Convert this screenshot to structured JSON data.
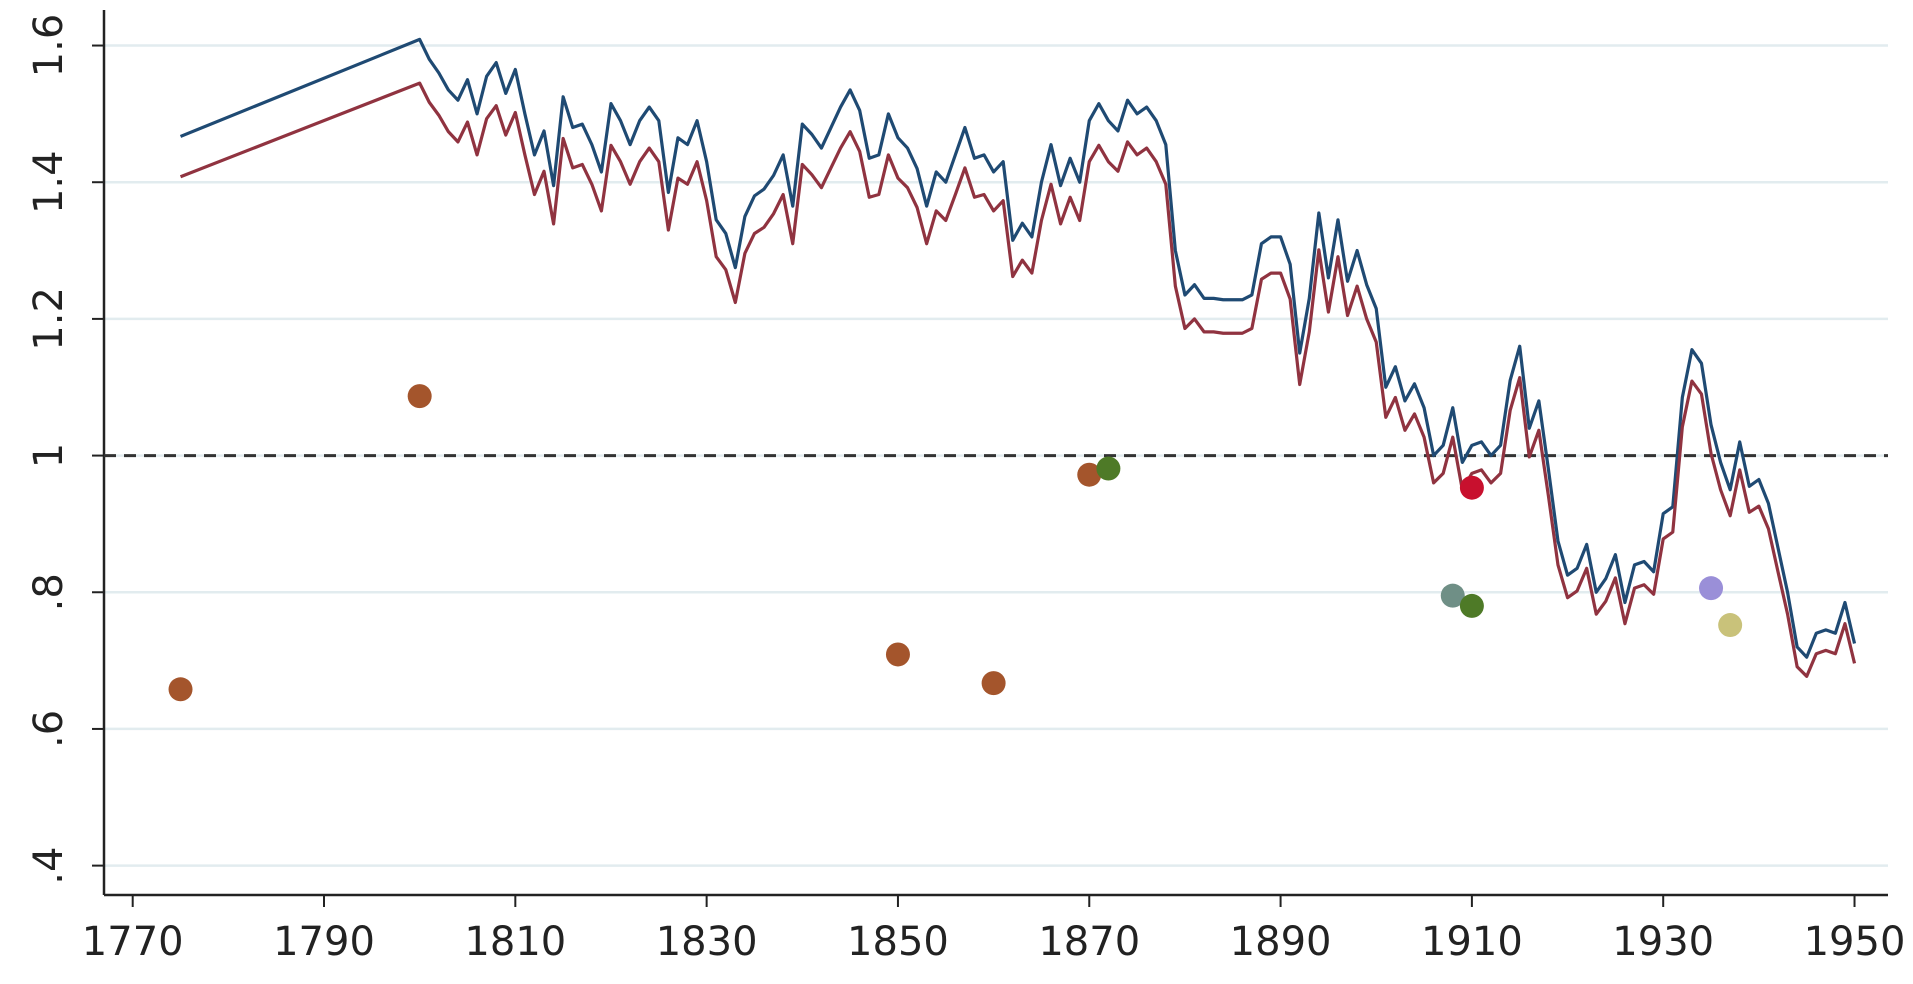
{
  "chart_data": {
    "type": "line",
    "x": [
      1775,
      1800,
      1801,
      1802,
      1803,
      1804,
      1805,
      1806,
      1807,
      1808,
      1809,
      1810,
      1811,
      1812,
      1813,
      1814,
      1815,
      1816,
      1817,
      1818,
      1819,
      1820,
      1821,
      1822,
      1823,
      1824,
      1825,
      1826,
      1827,
      1828,
      1829,
      1830,
      1831,
      1832,
      1833,
      1834,
      1835,
      1836,
      1837,
      1838,
      1839,
      1840,
      1841,
      1842,
      1843,
      1844,
      1845,
      1846,
      1847,
      1848,
      1849,
      1850,
      1851,
      1852,
      1853,
      1854,
      1855,
      1856,
      1857,
      1858,
      1859,
      1860,
      1861,
      1862,
      1863,
      1864,
      1865,
      1866,
      1867,
      1868,
      1869,
      1870,
      1871,
      1872,
      1873,
      1874,
      1875,
      1876,
      1877,
      1878,
      1879,
      1880,
      1881,
      1882,
      1883,
      1884,
      1885,
      1886,
      1887,
      1888,
      1889,
      1890,
      1891,
      1892,
      1893,
      1894,
      1895,
      1896,
      1897,
      1898,
      1899,
      1900,
      1901,
      1902,
      1903,
      1904,
      1905,
      1906,
      1907,
      1908,
      1909,
      1910,
      1911,
      1912,
      1913,
      1914,
      1915,
      1916,
      1917,
      1918,
      1919,
      1920,
      1921,
      1922,
      1923,
      1924,
      1925,
      1926,
      1927,
      1928,
      1929,
      1930,
      1931,
      1932,
      1933,
      1934,
      1935,
      1936,
      1937,
      1938,
      1939,
      1940,
      1941,
      1942,
      1943,
      1944,
      1945,
      1946,
      1947,
      1948,
      1949,
      1950
    ],
    "series": [
      {
        "color": "#1f4a73",
        "values": [
          1.467,
          1.609,
          1.58,
          1.56,
          1.535,
          1.52,
          1.55,
          1.5,
          1.555,
          1.575,
          1.53,
          1.565,
          1.5,
          1.44,
          1.475,
          1.395,
          1.525,
          1.48,
          1.485,
          1.455,
          1.415,
          1.515,
          1.49,
          1.455,
          1.49,
          1.51,
          1.49,
          1.385,
          1.465,
          1.455,
          1.49,
          1.43,
          1.345,
          1.325,
          1.275,
          1.35,
          1.38,
          1.39,
          1.41,
          1.44,
          1.365,
          1.485,
          1.47,
          1.45,
          1.48,
          1.51,
          1.535,
          1.505,
          1.435,
          1.44,
          1.5,
          1.465,
          1.45,
          1.42,
          1.365,
          1.415,
          1.4,
          1.44,
          1.48,
          1.435,
          1.44,
          1.415,
          1.43,
          1.315,
          1.34,
          1.32,
          1.4,
          1.455,
          1.395,
          1.435,
          1.4,
          1.49,
          1.515,
          1.49,
          1.475,
          1.52,
          1.5,
          1.51,
          1.49,
          1.455,
          1.3,
          1.235,
          1.25,
          1.23,
          1.23,
          1.228,
          1.228,
          1.228,
          1.235,
          1.31,
          1.32,
          1.32,
          1.28,
          1.15,
          1.23,
          1.355,
          1.26,
          1.345,
          1.255,
          1.3,
          1.25,
          1.215,
          1.1,
          1.13,
          1.08,
          1.105,
          1.07,
          1.0,
          1.015,
          1.07,
          0.99,
          1.015,
          1.02,
          1.0,
          1.015,
          1.11,
          1.16,
          1.04,
          1.08,
          0.98,
          0.875,
          0.825,
          0.835,
          0.87,
          0.8,
          0.82,
          0.855,
          0.785,
          0.84,
          0.845,
          0.83,
          0.915,
          0.925,
          1.085,
          1.155,
          1.135,
          1.045,
          0.99,
          0.95,
          1.02,
          0.955,
          0.965,
          0.93,
          0.865,
          0.8,
          0.72,
          0.705,
          0.74,
          0.745,
          0.74,
          0.785,
          0.725
        ]
      },
      {
        "color": "#903340",
        "values": [
          1.408,
          1.545,
          1.517,
          1.498,
          1.474,
          1.459,
          1.488,
          1.44,
          1.493,
          1.512,
          1.469,
          1.502,
          1.44,
          1.382,
          1.416,
          1.339,
          1.464,
          1.421,
          1.426,
          1.397,
          1.358,
          1.454,
          1.43,
          1.397,
          1.43,
          1.45,
          1.43,
          1.33,
          1.406,
          1.397,
          1.43,
          1.373,
          1.291,
          1.272,
          1.224,
          1.296,
          1.325,
          1.334,
          1.354,
          1.382,
          1.31,
          1.426,
          1.411,
          1.392,
          1.421,
          1.45,
          1.474,
          1.445,
          1.378,
          1.382,
          1.44,
          1.406,
          1.392,
          1.363,
          1.31,
          1.358,
          1.344,
          1.382,
          1.421,
          1.378,
          1.382,
          1.358,
          1.373,
          1.262,
          1.286,
          1.267,
          1.344,
          1.397,
          1.339,
          1.378,
          1.344,
          1.43,
          1.454,
          1.43,
          1.416,
          1.459,
          1.44,
          1.45,
          1.43,
          1.397,
          1.248,
          1.186,
          1.2,
          1.181,
          1.181,
          1.179,
          1.179,
          1.179,
          1.186,
          1.258,
          1.267,
          1.267,
          1.229,
          1.104,
          1.181,
          1.301,
          1.21,
          1.291,
          1.205,
          1.248,
          1.2,
          1.166,
          1.056,
          1.085,
          1.037,
          1.061,
          1.027,
          0.96,
          0.974,
          1.027,
          0.95,
          0.974,
          0.979,
          0.96,
          0.974,
          1.066,
          1.114,
          0.998,
          1.037,
          0.941,
          0.84,
          0.792,
          0.802,
          0.835,
          0.768,
          0.787,
          0.821,
          0.754,
          0.806,
          0.811,
          0.797,
          0.878,
          0.888,
          1.042,
          1.109,
          1.09,
          1.003,
          0.95,
          0.912,
          0.979,
          0.917,
          0.926,
          0.893,
          0.83,
          0.768,
          0.691,
          0.677,
          0.71,
          0.715,
          0.71,
          0.754,
          0.696
        ]
      }
    ],
    "points": {
      "x": [
        1775,
        1800,
        1850,
        1860,
        1870,
        1872,
        1910,
        1908,
        1910,
        1935,
        1937
      ],
      "values": [
        0.658,
        1.087,
        0.709,
        0.667,
        0.972,
        0.981,
        0.953,
        0.795,
        0.78,
        0.806,
        0.752
      ],
      "colors": [
        "#a4552c",
        "#a4552c",
        "#a4552c",
        "#a4552c",
        "#a4552c",
        "#4e7a27",
        "#c8102e",
        "#6f8f86",
        "#4e7a27",
        "#9a8fd8",
        "#c9c27a"
      ]
    },
    "hline": 1,
    "xlim": [
      1767,
      1953.5
    ],
    "ylim": [
      0.357,
      1.652
    ],
    "xticks": [
      1770,
      1790,
      1810,
      1830,
      1850,
      1870,
      1890,
      1910,
      1930,
      1950
    ],
    "yticks": [
      {
        "value": 0.4,
        "label": ".4"
      },
      {
        "value": 0.6,
        "label": ".6"
      },
      {
        "value": 0.8,
        "label": ".8"
      },
      1,
      1.2,
      1.4,
      1.6
    ],
    "grid": true
  }
}
